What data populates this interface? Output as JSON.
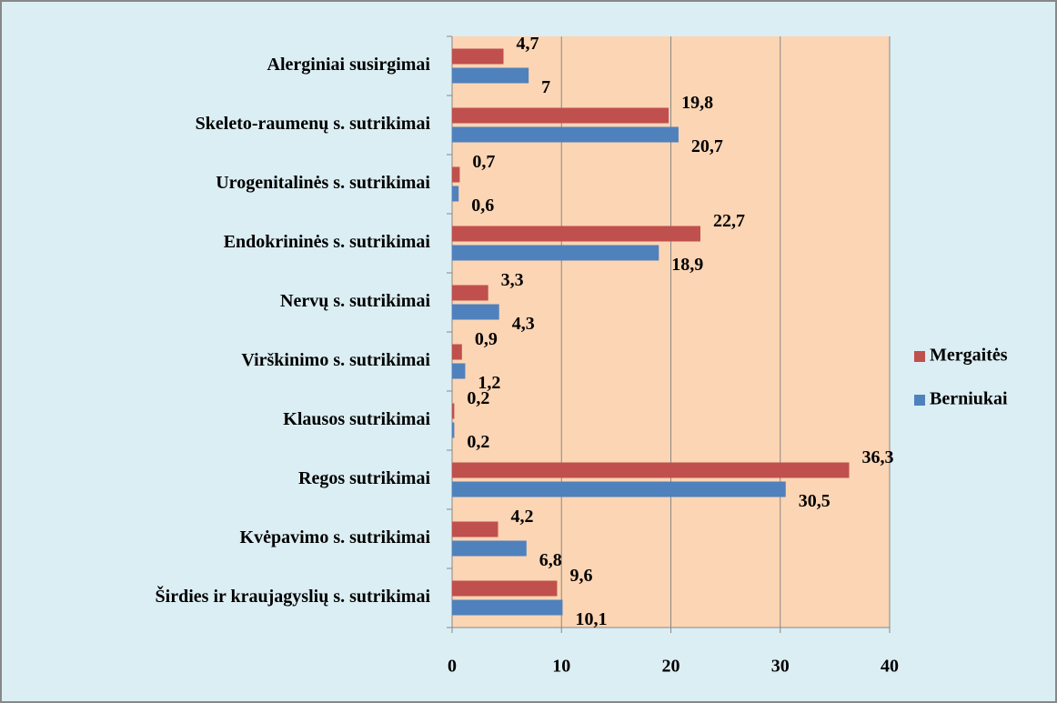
{
  "chart_data": {
    "type": "bar",
    "orientation": "horizontal",
    "categories": [
      "Alerginiai susirgimai",
      "Skeleto-raumenų s. sutrikimai",
      "Urogenitalinės s. sutrikimai",
      "Endokrininės s. sutrikimai",
      "Nervų s. sutrikimai",
      "Virškinimo s. sutrikimai",
      "Klausos sutrikimai",
      "Regos sutrikimai",
      "Kvėpavimo s. sutrikimai",
      "Širdies ir kraujagyslių s. sutrikimai"
    ],
    "series": [
      {
        "name": "Mergaitės",
        "color": "#c0504d",
        "values": [
          4.7,
          19.8,
          0.7,
          22.7,
          3.3,
          0.9,
          0.2,
          36.3,
          4.2,
          9.6
        ],
        "value_labels": [
          "4,7",
          "19,8",
          "0,7",
          "22,7",
          "3,3",
          "0,9",
          "0,2",
          "36,3",
          "4,2",
          "9,6"
        ]
      },
      {
        "name": "Berniukai",
        "color": "#4f81bd",
        "values": [
          7,
          20.7,
          0.6,
          18.9,
          4.3,
          1.2,
          0.2,
          30.5,
          6.8,
          10.1
        ],
        "value_labels": [
          "7",
          "20,7",
          "0,6",
          "18,9",
          "4,3",
          "1,2",
          "0,2",
          "30,5",
          "6,8",
          "10,1"
        ]
      }
    ],
    "xlim": [
      0,
      40
    ],
    "xticks": [
      0,
      10,
      20,
      30,
      40
    ],
    "grid": true,
    "legend": "right"
  }
}
